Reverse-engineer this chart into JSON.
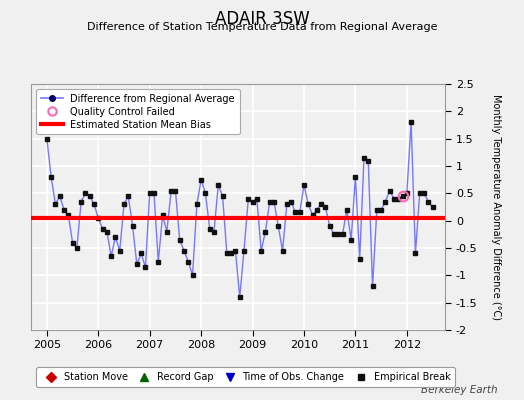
{
  "title": "ADAIR 3SW",
  "subtitle": "Difference of Station Temperature Data from Regional Average",
  "ylabel": "Monthly Temperature Anomaly Difference (°C)",
  "bias": 0.05,
  "ylim": [
    -2.0,
    2.5
  ],
  "xlim": [
    2004.7,
    2012.75
  ],
  "xticks": [
    2005,
    2006,
    2007,
    2008,
    2009,
    2010,
    2011,
    2012
  ],
  "yticks": [
    -2.0,
    -1.5,
    -1.0,
    -0.5,
    0.0,
    0.5,
    1.0,
    1.5,
    2.0,
    2.5
  ],
  "ytick_labels": [
    "-2",
    "-1.5",
    "-1",
    "-0.5",
    "0",
    "0.5",
    "1",
    "1.5",
    "2",
    "2.5"
  ],
  "line_color": "#7777ff",
  "marker_color": "#111111",
  "bias_color": "#ff0000",
  "qc_fail_color": "#ff69b4",
  "background_color": "#f0f0f0",
  "plot_bg_color": "#f0f0f0",
  "watermark": "Berkeley Earth",
  "times": [
    2005.0,
    2005.083,
    2005.167,
    2005.25,
    2005.333,
    2005.417,
    2005.5,
    2005.583,
    2005.667,
    2005.75,
    2005.833,
    2005.917,
    2006.0,
    2006.083,
    2006.167,
    2006.25,
    2006.333,
    2006.417,
    2006.5,
    2006.583,
    2006.667,
    2006.75,
    2006.833,
    2006.917,
    2007.0,
    2007.083,
    2007.167,
    2007.25,
    2007.333,
    2007.417,
    2007.5,
    2007.583,
    2007.667,
    2007.75,
    2007.833,
    2007.917,
    2008.0,
    2008.083,
    2008.167,
    2008.25,
    2008.333,
    2008.417,
    2008.5,
    2008.583,
    2008.667,
    2008.75,
    2008.833,
    2008.917,
    2009.0,
    2009.083,
    2009.167,
    2009.25,
    2009.333,
    2009.417,
    2009.5,
    2009.583,
    2009.667,
    2009.75,
    2009.833,
    2009.917,
    2010.0,
    2010.083,
    2010.167,
    2010.25,
    2010.333,
    2010.417,
    2010.5,
    2010.583,
    2010.667,
    2010.75,
    2010.833,
    2010.917,
    2011.0,
    2011.083,
    2011.167,
    2011.25,
    2011.333,
    2011.417,
    2011.5,
    2011.583,
    2011.667,
    2011.75,
    2011.833,
    2011.917,
    2012.0,
    2012.083,
    2012.167,
    2012.25,
    2012.333,
    2012.417,
    2012.5
  ],
  "values": [
    1.5,
    0.8,
    0.3,
    0.45,
    0.2,
    0.1,
    -0.4,
    -0.5,
    0.35,
    0.5,
    0.45,
    0.3,
    0.05,
    -0.15,
    -0.2,
    -0.65,
    -0.3,
    -0.55,
    0.3,
    0.45,
    -0.1,
    -0.8,
    -0.6,
    -0.85,
    0.5,
    0.5,
    -0.75,
    0.1,
    -0.2,
    0.55,
    0.55,
    -0.35,
    -0.55,
    -0.75,
    -1.0,
    0.3,
    0.75,
    0.5,
    -0.15,
    -0.2,
    0.65,
    0.45,
    -0.6,
    -0.6,
    -0.55,
    -1.4,
    -0.55,
    0.4,
    0.35,
    0.4,
    -0.55,
    -0.2,
    0.35,
    0.35,
    -0.1,
    -0.55,
    0.3,
    0.35,
    0.15,
    0.15,
    0.65,
    0.3,
    0.1,
    0.2,
    0.3,
    0.25,
    -0.1,
    -0.25,
    -0.25,
    -0.25,
    0.2,
    -0.35,
    0.8,
    -0.7,
    1.15,
    1.1,
    -1.2,
    0.2,
    0.2,
    0.35,
    0.55,
    0.4,
    0.4,
    0.45,
    0.5,
    1.8,
    -0.6,
    0.5,
    0.5,
    0.35,
    0.25
  ],
  "qc_fail_indices": [
    83
  ],
  "title_fontsize": 12,
  "subtitle_fontsize": 8,
  "tick_fontsize": 8,
  "ylabel_fontsize": 7
}
